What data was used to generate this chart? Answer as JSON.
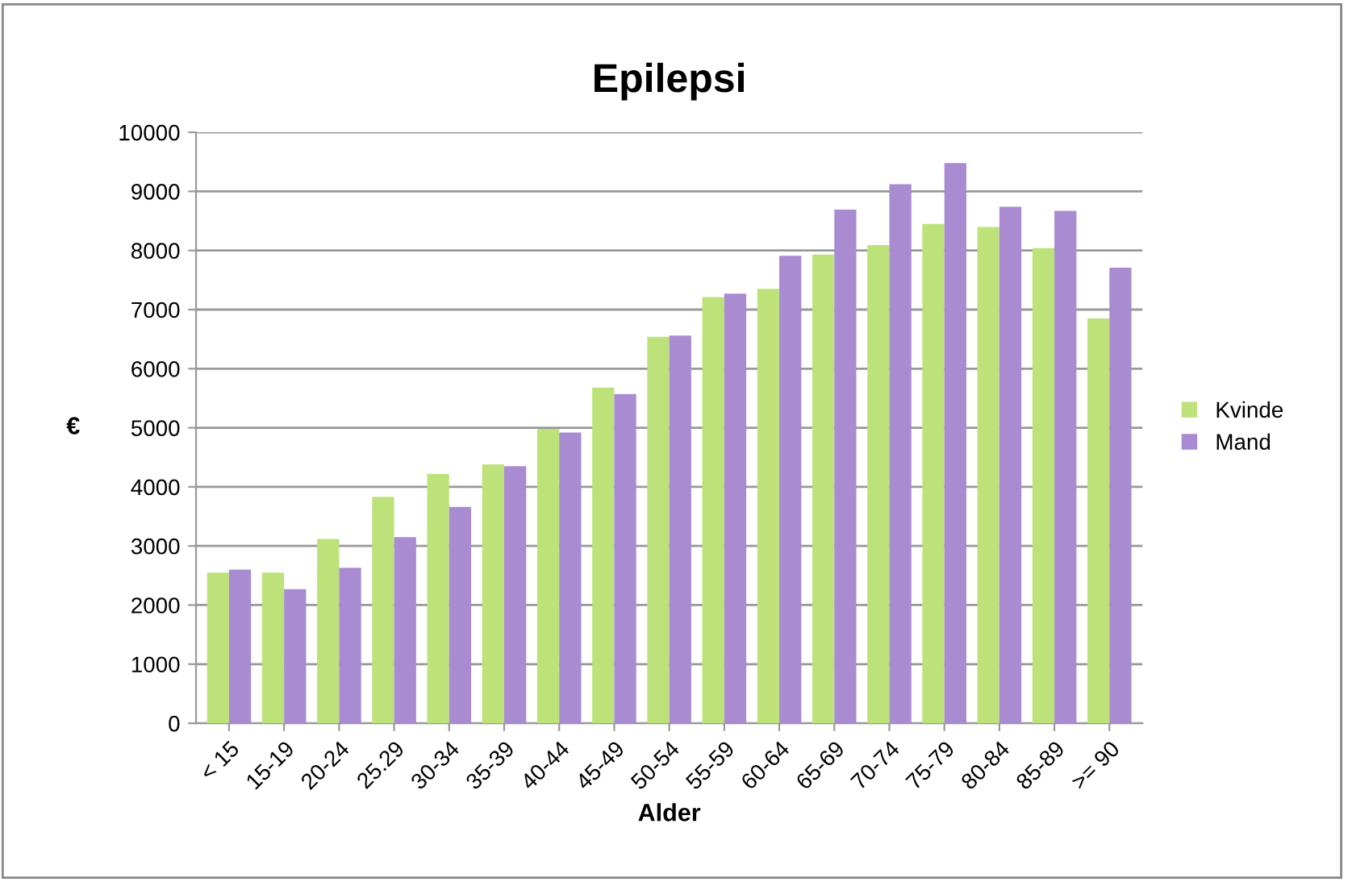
{
  "chart_data": {
    "type": "bar",
    "title": "Epilepsi",
    "xlabel": "Alder",
    "ylabel": "€",
    "categories": [
      "< 15",
      "15-19",
      "20-24",
      "25.29",
      "30-34",
      "35-39",
      "40-44",
      "45-49",
      "50-54",
      "55-59",
      "60-64",
      "65-69",
      "70-74",
      "75-79",
      "80-84",
      "85-89",
      ">= 90"
    ],
    "series": [
      {
        "name": "Kvinde",
        "color": "#bde27a",
        "values": [
          2550,
          2550,
          3120,
          3830,
          4220,
          4380,
          4980,
          5680,
          6540,
          7210,
          7350,
          7930,
          8090,
          8450,
          8400,
          8040,
          6850
        ]
      },
      {
        "name": "Mand",
        "color": "#a88bd0",
        "values": [
          2600,
          2270,
          2630,
          3150,
          3660,
          4350,
          4920,
          5570,
          6560,
          7270,
          7910,
          8690,
          9120,
          9480,
          8740,
          8670,
          7710
        ]
      }
    ],
    "ylim": [
      0,
      10000
    ],
    "yticks": [
      0,
      1000,
      2000,
      3000,
      4000,
      5000,
      6000,
      7000,
      8000,
      9000,
      10000
    ],
    "grid": "y",
    "legend": "right"
  }
}
